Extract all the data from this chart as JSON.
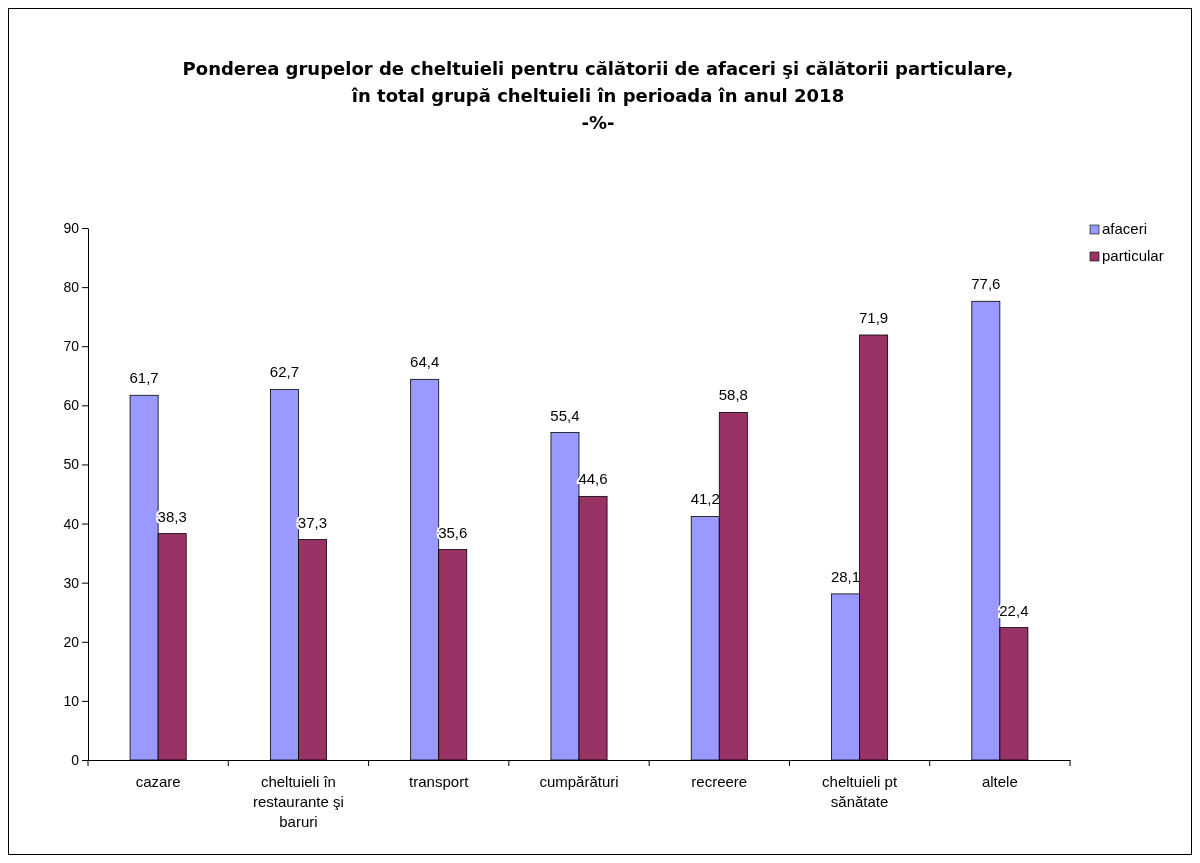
{
  "chart_data": {
    "type": "bar",
    "title": "Ponderea grupelor de cheltuieli pentru călătorii de afaceri şi călătorii particulare,\nîn total grupă cheltuieli în perioada în anul 2018",
    "subtitle": "-%-",
    "categories": [
      "cazare",
      "cheltuieli în restaurante şi baruri",
      "transport",
      "cumpărături",
      "recreere",
      "cheltuieli pt sănătate",
      "altele"
    ],
    "series": [
      {
        "name": "afaceri",
        "color": "#9999ff",
        "values": [
          61.7,
          62.7,
          64.4,
          55.4,
          41.2,
          28.1,
          77.6
        ],
        "value_labels": [
          "61,7",
          "62,7",
          "64,4",
          "55,4",
          "41,2",
          "28,1",
          "77,6"
        ]
      },
      {
        "name": "particular",
        "color": "#993366",
        "values": [
          38.3,
          37.3,
          35.6,
          44.6,
          58.8,
          71.9,
          22.4
        ],
        "value_labels": [
          "38,3",
          "37,3",
          "35,6",
          "44,6",
          "58,8",
          "71,9",
          "22,4"
        ]
      }
    ],
    "ylim": [
      0,
      90
    ],
    "yticks": [
      0,
      10,
      20,
      30,
      40,
      50,
      60,
      70,
      80,
      90
    ],
    "grid": false,
    "legend": "top right"
  }
}
